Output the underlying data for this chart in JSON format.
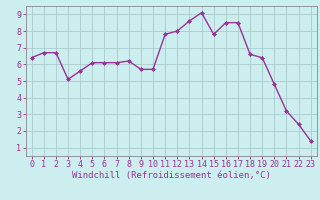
{
  "x": [
    0,
    1,
    2,
    3,
    4,
    5,
    6,
    7,
    8,
    9,
    10,
    11,
    12,
    13,
    14,
    15,
    16,
    17,
    18,
    19,
    20,
    21,
    22,
    23
  ],
  "y": [
    6.4,
    6.7,
    6.7,
    5.1,
    5.6,
    6.1,
    6.1,
    6.1,
    6.2,
    5.7,
    5.7,
    7.8,
    8.0,
    8.6,
    9.1,
    7.8,
    8.5,
    8.5,
    6.6,
    6.4,
    4.8,
    3.2,
    2.4,
    1.4
  ],
  "line_color": "#993399",
  "marker": "D",
  "marker_size": 2,
  "linewidth": 1.0,
  "bg_color": "#cceeee",
  "grid_color": "#aacccc",
  "xlabel": "Windchill (Refroidissement éolien,°C)",
  "ylabel": "",
  "title": "",
  "xlim": [
    -0.5,
    23.5
  ],
  "ylim": [
    0.5,
    9.5
  ],
  "yticks": [
    1,
    2,
    3,
    4,
    5,
    6,
    7,
    8,
    9
  ],
  "xticks": [
    0,
    1,
    2,
    3,
    4,
    5,
    6,
    7,
    8,
    9,
    10,
    11,
    12,
    13,
    14,
    15,
    16,
    17,
    18,
    19,
    20,
    21,
    22,
    23
  ],
  "tick_color": "#993399",
  "label_color": "#993399",
  "xlabel_fontsize": 6.5,
  "tick_fontsize": 6,
  "axis_line_color": "#993399",
  "spine_color": "#888888"
}
